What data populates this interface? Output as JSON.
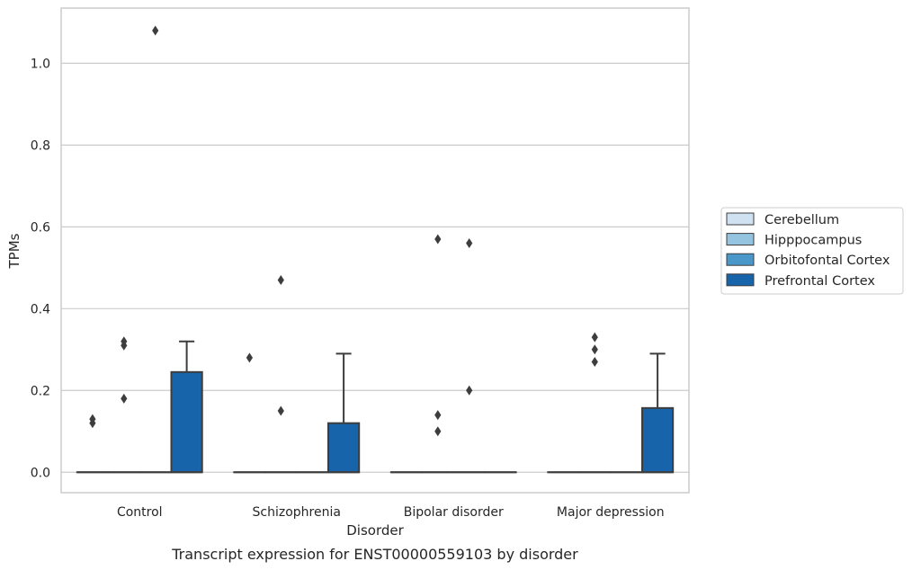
{
  "chart_data": {
    "type": "box",
    "xlabel": "Disorder",
    "ylabel": "TPMs",
    "caption": "Transcript expression for ENST00000559103 by disorder",
    "ylim": [
      -0.05,
      1.135
    ],
    "yticks": [
      0.0,
      0.2,
      0.4,
      0.6,
      0.8,
      1.0
    ],
    "ytick_labels": [
      "0.0",
      "0.2",
      "0.4",
      "0.6",
      "0.8",
      "1.0"
    ],
    "grid": "horizontal",
    "legend_position": "right",
    "categories": [
      "Control",
      "Schizophrenia",
      "Bipolar disorder",
      "Major depression"
    ],
    "series": [
      {
        "name": "Cerebellum",
        "color": "#d0e1f2",
        "boxes": [
          {
            "q1": 0,
            "median": 0,
            "q3": 0,
            "whisker_low": 0,
            "whisker_high": 0,
            "outliers": [
              0.13,
              0.12
            ]
          },
          {
            "q1": 0,
            "median": 0,
            "q3": 0,
            "whisker_low": 0,
            "whisker_high": 0,
            "outliers": [
              0.28
            ]
          },
          {
            "q1": 0,
            "median": 0,
            "q3": 0,
            "whisker_low": 0,
            "whisker_high": 0,
            "outliers": []
          },
          {
            "q1": 0,
            "median": 0,
            "q3": 0,
            "whisker_low": 0,
            "whisker_high": 0,
            "outliers": []
          }
        ]
      },
      {
        "name": "Hipppocampus",
        "color": "#94c4df",
        "boxes": [
          {
            "q1": 0,
            "median": 0,
            "q3": 0,
            "whisker_low": 0,
            "whisker_high": 0,
            "outliers": [
              0.32,
              0.31,
              0.18
            ]
          },
          {
            "q1": 0,
            "median": 0,
            "q3": 0,
            "whisker_low": 0,
            "whisker_high": 0,
            "outliers": [
              0.47,
              0.15
            ]
          },
          {
            "q1": 0,
            "median": 0,
            "q3": 0,
            "whisker_low": 0,
            "whisker_high": 0,
            "outliers": [
              0.57,
              0.14,
              0.1
            ]
          },
          {
            "q1": 0,
            "median": 0,
            "q3": 0,
            "whisker_low": 0,
            "whisker_high": 0,
            "outliers": [
              0.33,
              0.3,
              0.27
            ]
          }
        ]
      },
      {
        "name": "Orbitofontal Cortex",
        "color": "#4a98c9",
        "boxes": [
          {
            "q1": 0,
            "median": 0,
            "q3": 0,
            "whisker_low": 0,
            "whisker_high": 0,
            "outliers": [
              1.08
            ]
          },
          {
            "q1": 0,
            "median": 0,
            "q3": 0,
            "whisker_low": 0,
            "whisker_high": 0,
            "outliers": []
          },
          {
            "q1": 0,
            "median": 0,
            "q3": 0,
            "whisker_low": 0,
            "whisker_high": 0,
            "outliers": [
              0.56,
              0.2
            ]
          },
          {
            "q1": 0,
            "median": 0,
            "q3": 0,
            "whisker_low": 0,
            "whisker_high": 0,
            "outliers": []
          }
        ]
      },
      {
        "name": "Prefrontal Cortex",
        "color": "#1764ab",
        "boxes": [
          {
            "q1": 0,
            "median": 0,
            "q3": 0.245,
            "whisker_low": 0,
            "whisker_high": 0.32,
            "outliers": []
          },
          {
            "q1": 0,
            "median": 0,
            "q3": 0.12,
            "whisker_low": 0,
            "whisker_high": 0.29,
            "outliers": []
          },
          {
            "q1": 0,
            "median": 0,
            "q3": 0,
            "whisker_low": 0,
            "whisker_high": 0,
            "outliers": []
          },
          {
            "q1": 0,
            "median": 0,
            "q3": 0.157,
            "whisker_low": 0,
            "whisker_high": 0.29,
            "outliers": []
          }
        ]
      }
    ]
  }
}
